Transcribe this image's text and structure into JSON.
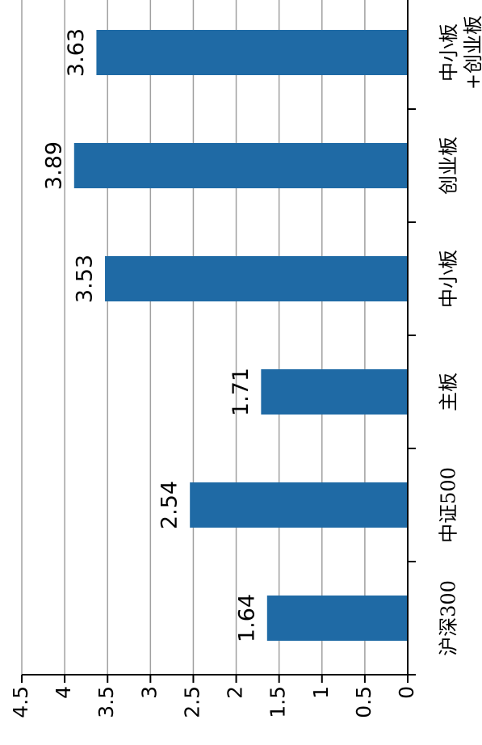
{
  "chart_data": {
    "type": "bar",
    "categories": [
      "沪深300",
      "中证500",
      "主板",
      "中小板",
      "创业板",
      "中小板\n+创业板"
    ],
    "values": [
      1.64,
      2.54,
      1.71,
      3.53,
      3.89,
      3.63
    ],
    "color": "#1f6aa5",
    "ylim": [
      0,
      4.5
    ],
    "yticks": [
      0,
      0.5,
      1,
      1.5,
      2,
      2.5,
      3,
      3.5,
      4,
      4.5
    ],
    "grid": true,
    "rotated": true
  }
}
